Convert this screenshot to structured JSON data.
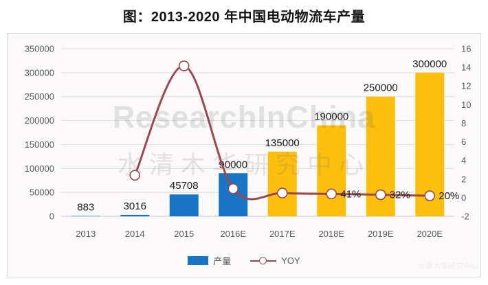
{
  "title": "图：2013-2020 年中国电动物流车产量",
  "watermarks": {
    "primary": "ResearchInChina",
    "secondary": "水清木华研究中心",
    "corner": "水清木华研究中心"
  },
  "legend": {
    "bar_label": "产量",
    "line_label": "YOY"
  },
  "colors": {
    "bar_blue": "#1874c5",
    "bar_yellow": "#fcbf0c",
    "line": "#9e484d",
    "marker_fill": "#ffffff",
    "grid": "#dcdcdc",
    "baseline": "#c8c8c8",
    "axis_text": "#595959",
    "label_text": "#1a1a1a",
    "panel_border": "#d9d9d9",
    "panel_bg": "#fbf9fa"
  },
  "chart_data": {
    "type": "bar+line combo",
    "title": "图：2013-2020 年中国电动物流车产量",
    "categories": [
      "2013",
      "2014",
      "2015",
      "2016E",
      "2017E",
      "2018E",
      "2019E",
      "2020E"
    ],
    "series": [
      {
        "name": "产量",
        "type": "bar",
        "axis": "left",
        "values": [
          883,
          3016,
          45708,
          90000,
          135000,
          190000,
          250000,
          300000
        ],
        "data_labels": [
          "883",
          "3016",
          "45708",
          "90000",
          "135000",
          "190000",
          "250000",
          "300000"
        ],
        "bar_colors": [
          "#1874c5",
          "#1874c5",
          "#1874c5",
          "#1874c5",
          "#fcbf0c",
          "#fcbf0c",
          "#fcbf0c",
          "#fcbf0c"
        ]
      },
      {
        "name": "YOY",
        "type": "line",
        "axis": "right",
        "values": [
          null,
          2.41,
          14.16,
          0.97,
          0.5,
          0.41,
          0.32,
          0.2
        ],
        "point_labels": [
          null,
          null,
          null,
          null,
          null,
          "41%",
          "32%",
          "20%"
        ]
      }
    ],
    "left_axis": {
      "min": 0,
      "max": 350000,
      "step": 50000,
      "tick_labels": [
        "0",
        "50000",
        "100000",
        "150000",
        "200000",
        "250000",
        "300000",
        "350000"
      ]
    },
    "right_axis": {
      "min": -2,
      "max": 16,
      "step": 2,
      "tick_labels": [
        "-2",
        "0",
        "2",
        "4",
        "6",
        "8",
        "10",
        "12",
        "14",
        "16"
      ]
    },
    "grid": "horizontal only",
    "legend_position": "bottom center"
  }
}
